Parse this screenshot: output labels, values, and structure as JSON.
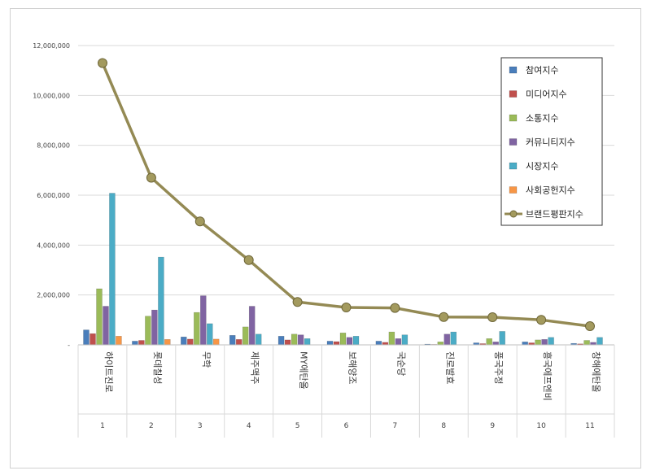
{
  "chart_data": {
    "type": "bar",
    "title": "",
    "xlabel": "",
    "ylabel": "",
    "ylim": [
      0,
      12000000
    ],
    "ytick_labels": [
      "0",
      "2,000,000",
      "4,000,000",
      "6,000,000",
      "8,000,000",
      "10,000,000",
      "12,000,000"
    ],
    "ytick_values": [
      0,
      2000000,
      4000000,
      6000000,
      8000000,
      10000000,
      12000000
    ],
    "ytick_zero_label": "-",
    "ranks": [
      "1",
      "2",
      "3",
      "4",
      "5",
      "6",
      "7",
      "8",
      "9",
      "10",
      "11"
    ],
    "categories": [
      "하이트진로",
      "롯데칠성",
      "무학",
      "제주맥주",
      "MY에탄올",
      "보해양조",
      "국순당",
      "진로발효",
      "풍국주정",
      "흥국에프엔비",
      "창해에탄올"
    ],
    "legend_position": "top-right",
    "series": [
      {
        "name": "참여지수",
        "color": "#4a7ebb",
        "kind": "bar",
        "values": [
          600000,
          150000,
          320000,
          380000,
          350000,
          150000,
          150000,
          30000,
          80000,
          120000,
          60000
        ]
      },
      {
        "name": "미디어지수",
        "color": "#c0504d",
        "kind": "bar",
        "values": [
          450000,
          180000,
          230000,
          220000,
          200000,
          130000,
          100000,
          20000,
          50000,
          80000,
          40000
        ]
      },
      {
        "name": "소통지수",
        "color": "#9bbb59",
        "kind": "bar",
        "values": [
          2250000,
          1150000,
          1300000,
          720000,
          430000,
          480000,
          520000,
          120000,
          250000,
          200000,
          180000
        ]
      },
      {
        "name": "커뮤니티지수",
        "color": "#8064a2",
        "kind": "bar",
        "values": [
          1550000,
          1400000,
          1970000,
          1550000,
          400000,
          300000,
          250000,
          430000,
          120000,
          220000,
          100000
        ]
      },
      {
        "name": "시장지수",
        "color": "#4bacc6",
        "kind": "bar",
        "values": [
          6080000,
          3520000,
          850000,
          430000,
          250000,
          350000,
          400000,
          520000,
          540000,
          300000,
          300000
        ]
      },
      {
        "name": "사회공헌지수",
        "color": "#f79646",
        "kind": "bar",
        "values": [
          350000,
          220000,
          230000,
          0,
          0,
          0,
          0,
          0,
          0,
          0,
          0
        ]
      },
      {
        "name": "브랜드평판지수",
        "color": "#948a54",
        "kind": "line",
        "values": [
          11300000,
          6700000,
          4950000,
          3400000,
          1720000,
          1500000,
          1480000,
          1120000,
          1110000,
          1000000,
          750000
        ]
      }
    ]
  }
}
